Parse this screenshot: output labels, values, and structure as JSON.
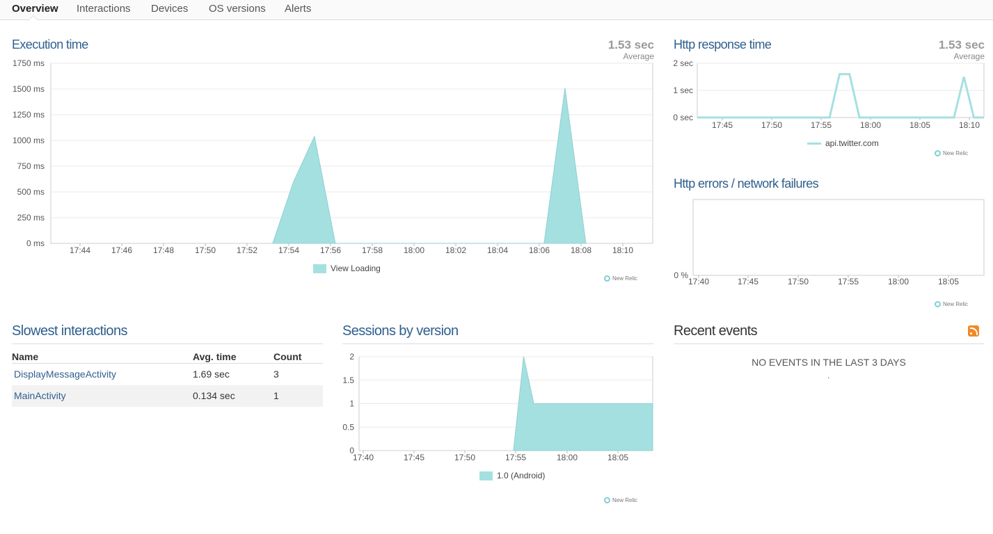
{
  "tabs": [
    "Overview",
    "Interactions",
    "Devices",
    "OS versions",
    "Alerts"
  ],
  "active_tab": "Overview",
  "colors": {
    "series_fill": "#a5e0e1",
    "series_stroke": "#8ecfd1",
    "title_blue": "#2f5f8e",
    "grid": "#e8e8e8"
  },
  "watermark": "New Relic",
  "execution_time": {
    "title": "Execution time",
    "average_value": "1.53 sec",
    "average_label": "Average",
    "legend": "View Loading"
  },
  "http_response": {
    "title": "Http response time",
    "average_value": "1.53 sec",
    "average_label": "Average",
    "legend": "api.twitter.com"
  },
  "http_errors": {
    "title": "Http errors / network failures"
  },
  "slowest": {
    "title": "Slowest interactions",
    "columns": [
      "Name",
      "Avg. time",
      "Count"
    ],
    "rows": [
      {
        "name": "DisplayMessageActivity",
        "avg": "1.69 sec",
        "count": "3"
      },
      {
        "name": "MainActivity",
        "avg": "0.134 sec",
        "count": "1"
      }
    ]
  },
  "sessions": {
    "title": "Sessions by version",
    "legend": "1.0 (Android)"
  },
  "recent_events": {
    "title": "Recent events",
    "empty_message": "NO EVENTS IN THE LAST 3 DAYS",
    "dot": "."
  },
  "chart_data": [
    {
      "id": "execution_time",
      "type": "area",
      "title": "Execution time",
      "ylim": [
        0,
        1750
      ],
      "y_ticks": [
        "0 ms",
        "250 ms",
        "500 ms",
        "750 ms",
        "1000 ms",
        "1250 ms",
        "1500 ms",
        "1750 ms"
      ],
      "x_ticks": [
        "17:44",
        "17:46",
        "17:48",
        "17:50",
        "17:52",
        "17:54",
        "17:56",
        "17:58",
        "18:00",
        "18:02",
        "18:04",
        "18:06",
        "18:08",
        "18:10"
      ],
      "series": [
        {
          "name": "View Loading",
          "x": [
            "17:53.2",
            "17:54.2",
            "17:55.2",
            "17:56.2",
            "18:06.2",
            "18:07.2",
            "18:08.2"
          ],
          "values": [
            0,
            600,
            1040,
            0,
            0,
            1510,
            0
          ]
        }
      ],
      "legend": "bottom"
    },
    {
      "id": "http_response",
      "type": "line",
      "title": "Http response time",
      "ylim": [
        0,
        2
      ],
      "y_ticks": [
        "0 sec",
        "1 sec",
        "2 sec"
      ],
      "x_ticks": [
        "17:45",
        "17:50",
        "17:55",
        "18:00",
        "18:05",
        "18:10"
      ],
      "series": [
        {
          "name": "api.twitter.com",
          "x": [
            "17:40",
            "17:53.5",
            "17:54.5",
            "17:55.5",
            "17:56.5",
            "18:06",
            "18:07",
            "18:08",
            "18:12"
          ],
          "values": [
            0,
            0,
            1.6,
            1.6,
            0,
            0,
            1.5,
            0,
            0
          ]
        }
      ],
      "legend": "bottom"
    },
    {
      "id": "http_errors",
      "type": "line",
      "title": "Http errors / network failures",
      "y_ticks": [
        "0 %"
      ],
      "x_ticks": [
        "17:40",
        "17:45",
        "17:50",
        "17:55",
        "18:00",
        "18:05"
      ],
      "series": []
    },
    {
      "id": "sessions",
      "type": "area",
      "title": "Sessions by version",
      "ylim": [
        0,
        2
      ],
      "y_ticks": [
        "0",
        "0.5",
        "1",
        "1.5",
        "2"
      ],
      "x_ticks": [
        "17:40",
        "17:45",
        "17:50",
        "17:55",
        "18:00",
        "18:05"
      ],
      "series": [
        {
          "name": "1.0 (Android)",
          "x": [
            "17:54.5",
            "17:55.5",
            "17:56.5",
            "18:09"
          ],
          "values": [
            0,
            2,
            1,
            1
          ]
        }
      ],
      "legend": "bottom"
    }
  ]
}
